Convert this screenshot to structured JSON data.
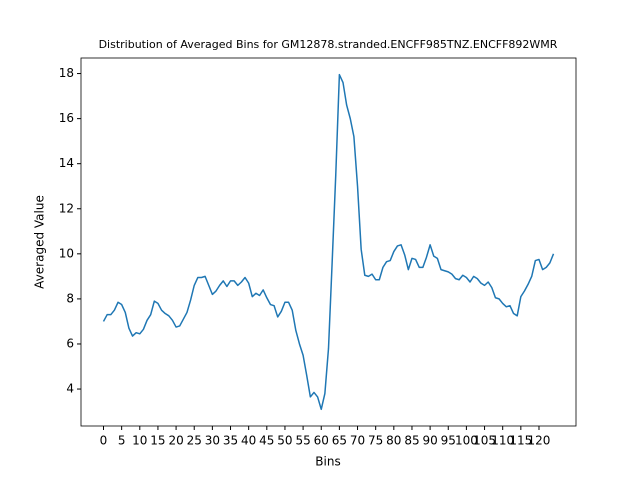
{
  "chart_data": {
    "type": "line",
    "title": "Distribution of Averaged Bins for GM12878.stranded.ENCFF985TNZ.ENCFF892WMR",
    "x_label": "Bins",
    "y_label": "Averaged Value",
    "x": [
      0,
      1,
      2,
      3,
      4,
      5,
      6,
      7,
      8,
      9,
      10,
      11,
      12,
      13,
      14,
      15,
      16,
      17,
      18,
      19,
      20,
      21,
      22,
      23,
      24,
      25,
      26,
      27,
      28,
      29,
      30,
      31,
      32,
      33,
      34,
      35,
      36,
      37,
      38,
      39,
      40,
      41,
      42,
      43,
      44,
      45,
      46,
      47,
      48,
      49,
      50,
      51,
      52,
      53,
      54,
      55,
      56,
      57,
      58,
      59,
      60,
      61,
      62,
      63,
      64,
      65,
      66,
      67,
      68,
      69,
      70,
      71,
      72,
      73,
      74,
      75,
      76,
      77,
      78,
      79,
      80,
      81,
      82,
      83,
      84,
      85,
      86,
      87,
      88,
      89,
      90,
      91,
      92,
      93,
      94,
      95,
      96,
      97,
      98,
      99,
      100,
      101,
      102,
      103,
      104,
      105,
      106,
      107,
      108,
      109,
      110,
      111,
      112,
      113,
      114,
      115,
      116,
      117,
      118,
      119,
      120,
      121,
      122,
      123,
      124
    ],
    "series": [
      {
        "color": "#1f77b4",
        "values": [
          7.0,
          7.3,
          7.3,
          7.5,
          7.85,
          7.75,
          7.4,
          6.7,
          6.35,
          6.5,
          6.45,
          6.65,
          7.05,
          7.3,
          7.9,
          7.8,
          7.5,
          7.35,
          7.25,
          7.05,
          6.75,
          6.8,
          7.1,
          7.4,
          7.95,
          8.6,
          8.95,
          8.95,
          9.0,
          8.6,
          8.2,
          8.35,
          8.6,
          8.8,
          8.55,
          8.8,
          8.8,
          8.6,
          8.75,
          8.95,
          8.7,
          8.1,
          8.25,
          8.15,
          8.4,
          8.05,
          7.75,
          7.7,
          7.2,
          7.45,
          7.85,
          7.85,
          7.5,
          6.6,
          6.0,
          5.5,
          4.6,
          3.65,
          3.85,
          3.65,
          3.1,
          3.8,
          5.8,
          9.6,
          13.5,
          17.95,
          17.6,
          16.6,
          16.0,
          15.2,
          13.0,
          10.2,
          9.05,
          9.0,
          9.1,
          8.85,
          8.85,
          9.4,
          9.65,
          9.7,
          10.1,
          10.35,
          10.4,
          9.95,
          9.3,
          9.8,
          9.75,
          9.4,
          9.4,
          9.85,
          10.4,
          9.9,
          9.8,
          9.3,
          9.25,
          9.2,
          9.1,
          8.9,
          8.85,
          9.05,
          8.95,
          8.75,
          9.0,
          8.9,
          8.7,
          8.6,
          8.75,
          8.5,
          8.05,
          8.0,
          7.8,
          7.65,
          7.7,
          7.35,
          7.25,
          8.1,
          8.35,
          8.65,
          9.0,
          9.7,
          9.75,
          9.3,
          9.4,
          9.6,
          10.0
        ]
      }
    ],
    "xlim": [
      -6.2,
      130.2
    ],
    "ylim": [
      2.36,
      18.69
    ],
    "xticks": [
      0,
      5,
      10,
      15,
      20,
      25,
      30,
      35,
      40,
      45,
      50,
      55,
      60,
      65,
      70,
      75,
      80,
      85,
      90,
      95,
      100,
      105,
      110,
      115,
      120
    ],
    "yticks": [
      4,
      6,
      8,
      10,
      12,
      14,
      16,
      18
    ]
  }
}
